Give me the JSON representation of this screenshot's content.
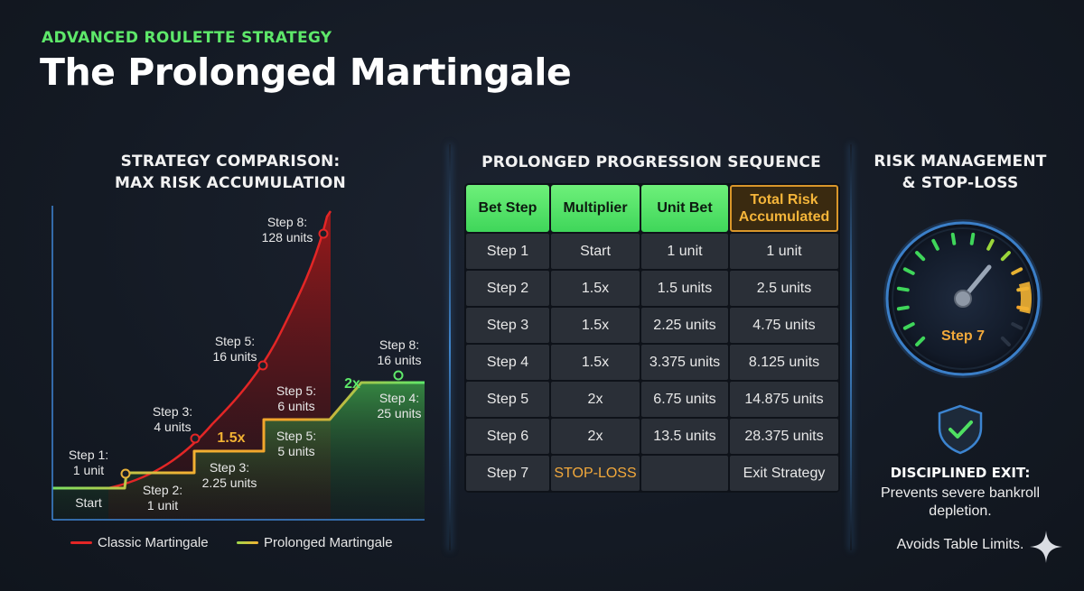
{
  "header": {
    "kicker": "ADVANCED ROULETTE STRATEGY",
    "title": "The Prolonged Martingale"
  },
  "comparison": {
    "title_line1": "STRATEGY COMPARISON:",
    "title_line2": "MAX RISK ACCUMULATION",
    "classic_labels": [
      {
        "line1": "Step 1:",
        "line2": "1 unit"
      },
      {
        "line1": "Step 3:",
        "line2": "4 units"
      },
      {
        "line1": "Step 5:",
        "line2": "16 units"
      },
      {
        "line1": "Step 8:",
        "line2": "128 units"
      }
    ],
    "prolonged_labels": [
      {
        "line1": "Step 2:",
        "line2": "1 unit"
      },
      {
        "line1": "Step 3:",
        "line2": "2.25 units"
      },
      {
        "line1": "Step 5:",
        "line2": "5 units"
      },
      {
        "line1": "Step 5:",
        "line2": "6 units"
      },
      {
        "line1": "Step 4:",
        "line2": "25 units"
      },
      {
        "line1": "Step 8:",
        "line2": "16 units"
      }
    ],
    "start_label": "Start",
    "multiplier_1": "1.5x",
    "multiplier_2": "2x",
    "legend": [
      {
        "name": "Classic Martingale",
        "color": "#e32626"
      },
      {
        "name": "Prolonged Martingale",
        "color": "#9fd64a"
      }
    ]
  },
  "chart_data": {
    "type": "line",
    "title": "STRATEGY COMPARISON: MAX RISK ACCUMULATION",
    "xlabel": "",
    "ylabel": "",
    "series": [
      {
        "name": "Classic Martingale",
        "color": "#e32626",
        "points": [
          {
            "label": "Step 1: 1 unit"
          },
          {
            "label": "Step 3: 4 units"
          },
          {
            "label": "Step 5: 16 units"
          },
          {
            "label": "Step 8: 128 units"
          }
        ]
      },
      {
        "name": "Prolonged Martingale",
        "color": "#9fd64a",
        "points": [
          {
            "label": "Step 2: 1 unit"
          },
          {
            "label": "Step 3: 2.25 units"
          },
          {
            "label": "Step 5: 5 units"
          },
          {
            "label": "Step 5: 6 units"
          },
          {
            "label": "Step 8: 16 units"
          },
          {
            "label": "Step 4: 25 units"
          }
        ]
      }
    ],
    "annotations": [
      "Start",
      "1.5x",
      "2x"
    ],
    "grid": false,
    "legend": "bottom"
  },
  "progression": {
    "title": "PROLONGED PROGRESSION SEQUENCE",
    "headers": [
      "Bet Step",
      "Multiplier",
      "Unit Bet",
      "Total Risk Accumulated"
    ],
    "rows": [
      [
        "Step 1",
        "Start",
        "1 unit",
        "1 unit"
      ],
      [
        "Step 2",
        "1.5x",
        "1.5 units",
        "2.5 units"
      ],
      [
        "Step 3",
        "1.5x",
        "2.25 units",
        "4.75 units"
      ],
      [
        "Step 4",
        "1.5x",
        "3.375 units",
        "8.125 units"
      ],
      [
        "Step 5",
        "2x",
        "6.75 units",
        "14.875 units"
      ],
      [
        "Step 6",
        "2x",
        "13.5 units",
        "28.375 units"
      ],
      [
        "Step 7",
        "STOP-LOSS",
        "",
        "Exit Strategy"
      ]
    ]
  },
  "risk": {
    "title_line1": "RISK MANAGEMENT",
    "title_line2": "& STOP-LOSS",
    "gauge_label": "Step 7",
    "gauge_level": 0.92,
    "exit_title": "DISCIPLINED EXIT:",
    "exit_text": "Prevents severe bankroll depletion.",
    "exit_limits": "Avoids Table Limits."
  },
  "colors": {
    "accent_green": "#5ee86a",
    "classic_red": "#e32626",
    "prolonged_yellow": "#f2b233",
    "gold": "#f5b53a"
  }
}
